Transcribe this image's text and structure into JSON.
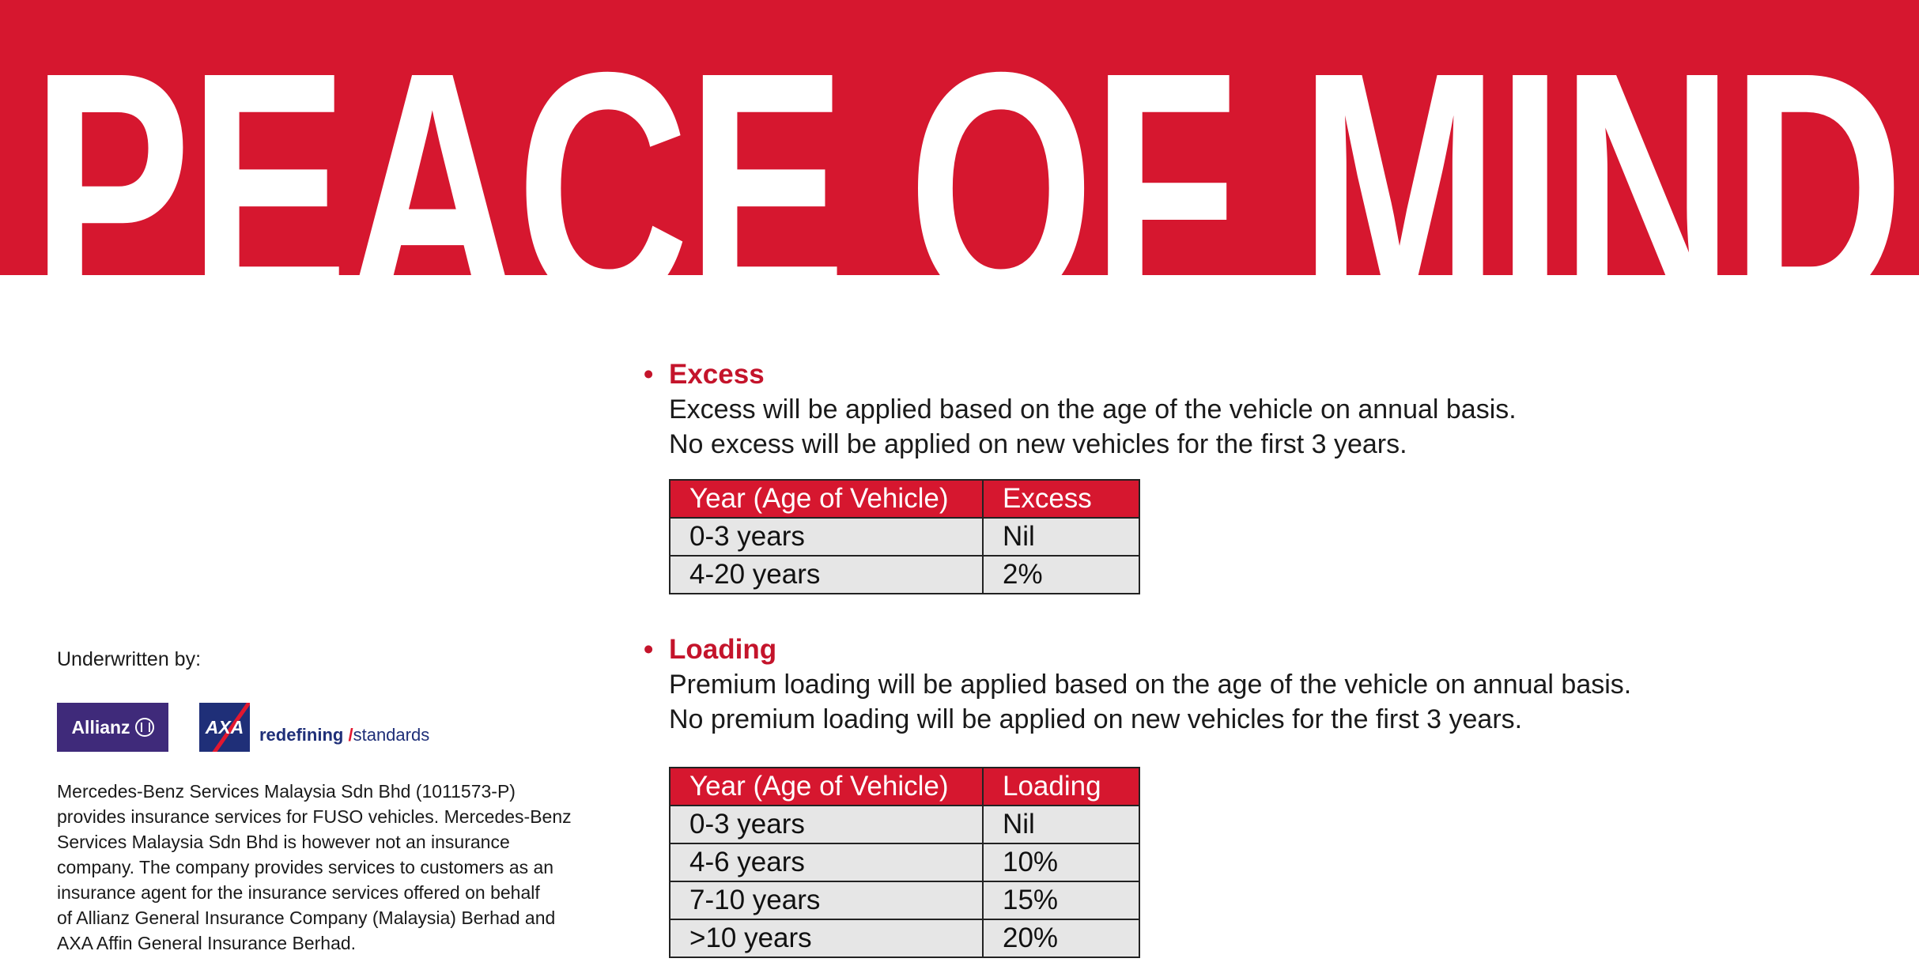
{
  "banner": {
    "title": "PEACE OF MIND"
  },
  "excess": {
    "heading": "Excess",
    "lines": [
      "Excess will be applied based on the age of the vehicle on annual basis.",
      "No excess will be applied on new vehicles for the first 3 years."
    ],
    "table": {
      "headers": [
        "Year (Age of Vehicle)",
        "Excess"
      ],
      "rows": [
        [
          "0-3 years",
          "Nil"
        ],
        [
          "4-20 years",
          "2%"
        ]
      ]
    }
  },
  "loading": {
    "heading": "Loading",
    "lines": [
      "Premium loading will be applied based on the age of the vehicle on annual basis.",
      "No premium loading will be applied on new vehicles for the first 3 years."
    ],
    "table": {
      "headers": [
        "Year (Age of Vehicle)",
        "Loading"
      ],
      "rows": [
        [
          "0-3 years",
          "Nil"
        ],
        [
          "4-6 years",
          "10%"
        ],
        [
          "7-10 years",
          "15%"
        ],
        [
          ">10 years",
          "20%"
        ]
      ]
    }
  },
  "footer": {
    "underwritten": "Underwritten by:",
    "allianz_logo": "Allianz",
    "axa_logo": "AXA",
    "tagline_bold": "redefining",
    "tagline_slash": "/",
    "tagline_rest": "standards",
    "disclaimer": [
      "Mercedes-Benz Services Malaysia Sdn Bhd (1011573-P)",
      "provides insurance services for FUSO vehicles. Mercedes-Benz",
      "Services Malaysia Sdn Bhd is however not an insurance",
      "company. The company provides services to customers as an",
      "insurance agent for the insurance services offered on behalf",
      "of Allianz General Insurance Company (Malaysia) Berhad and",
      "AXA Affin General Insurance Berhad."
    ]
  },
  "colors": {
    "brand_red": "#d6172f",
    "heading_red": "#c4142b",
    "allianz_purple": "#3f2a7a",
    "axa_blue": "#1f2f78"
  }
}
